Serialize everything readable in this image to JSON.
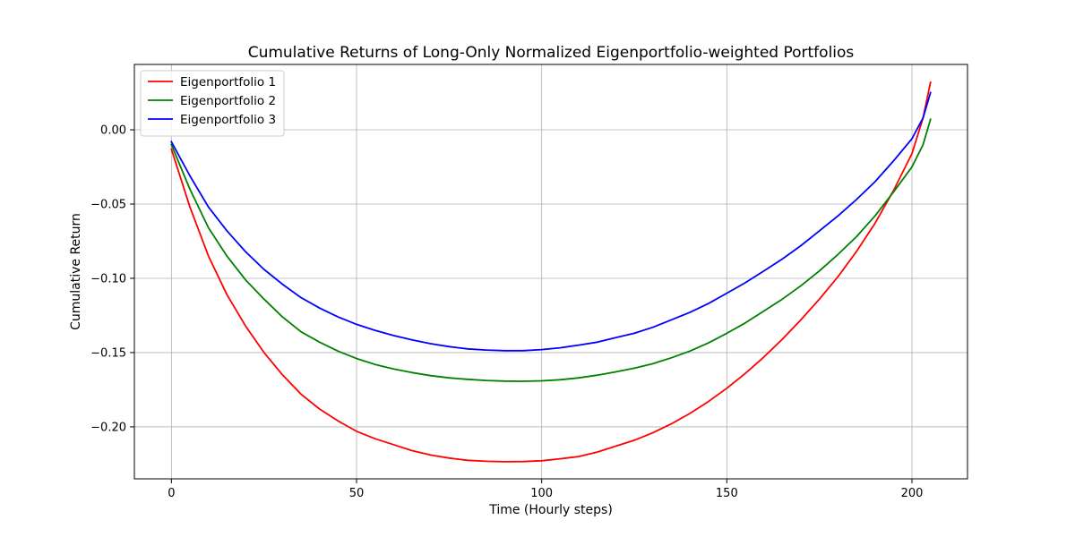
{
  "chart_data": {
    "type": "line",
    "title": "Cumulative Returns of Long-Only Normalized Eigenportfolio-weighted Portfolios",
    "xlabel": "Time (Hourly steps)",
    "ylabel": "Cumulative Return",
    "xlim": [
      -10,
      215
    ],
    "ylim": [
      -0.235,
      0.044
    ],
    "xticks": [
      0,
      50,
      100,
      150,
      200
    ],
    "xtick_labels": [
      "0",
      "50",
      "100",
      "150",
      "200"
    ],
    "yticks": [
      0.0,
      -0.05,
      -0.1,
      -0.15,
      -0.2
    ],
    "ytick_labels": [
      "0.00",
      "−0.05",
      "−0.10",
      "−0.15",
      "−0.20"
    ],
    "grid": true,
    "legend_position": "top-left",
    "x": [
      0,
      5,
      10,
      15,
      20,
      25,
      30,
      35,
      40,
      45,
      50,
      55,
      60,
      65,
      70,
      75,
      80,
      85,
      90,
      95,
      100,
      105,
      110,
      115,
      120,
      125,
      130,
      135,
      140,
      145,
      150,
      155,
      160,
      165,
      170,
      175,
      180,
      185,
      190,
      195,
      200,
      203,
      205
    ],
    "series": [
      {
        "name": "Eigenportfolio 1",
        "color": "#ff0000",
        "values": [
          -0.013,
          -0.052,
          -0.085,
          -0.111,
          -0.132,
          -0.15,
          -0.165,
          -0.178,
          -0.188,
          -0.196,
          -0.203,
          -0.208,
          -0.212,
          -0.216,
          -0.219,
          -0.221,
          -0.2225,
          -0.2232,
          -0.2235,
          -0.2234,
          -0.2228,
          -0.2215,
          -0.22,
          -0.217,
          -0.213,
          -0.209,
          -0.204,
          -0.198,
          -0.191,
          -0.183,
          -0.174,
          -0.164,
          -0.153,
          -0.141,
          -0.128,
          -0.114,
          -0.099,
          -0.082,
          -0.063,
          -0.041,
          -0.016,
          0.008,
          0.032
        ]
      },
      {
        "name": "Eigenportfolio 2",
        "color": "#008000",
        "values": [
          -0.01,
          -0.04,
          -0.066,
          -0.085,
          -0.101,
          -0.114,
          -0.126,
          -0.136,
          -0.143,
          -0.149,
          -0.154,
          -0.158,
          -0.161,
          -0.1635,
          -0.1655,
          -0.167,
          -0.168,
          -0.1688,
          -0.1692,
          -0.1693,
          -0.169,
          -0.1683,
          -0.167,
          -0.1652,
          -0.163,
          -0.1605,
          -0.1575,
          -0.1535,
          -0.149,
          -0.1435,
          -0.137,
          -0.13,
          -0.122,
          -0.114,
          -0.105,
          -0.095,
          -0.084,
          -0.072,
          -0.058,
          -0.042,
          -0.025,
          -0.01,
          0.007
        ]
      },
      {
        "name": "Eigenportfolio 3",
        "color": "#0000ff",
        "values": [
          -0.008,
          -0.031,
          -0.052,
          -0.068,
          -0.082,
          -0.094,
          -0.104,
          -0.113,
          -0.12,
          -0.126,
          -0.131,
          -0.135,
          -0.1385,
          -0.1415,
          -0.144,
          -0.146,
          -0.1475,
          -0.1483,
          -0.1487,
          -0.1487,
          -0.148,
          -0.1468,
          -0.145,
          -0.143,
          -0.14,
          -0.137,
          -0.133,
          -0.128,
          -0.123,
          -0.117,
          -0.11,
          -0.103,
          -0.095,
          -0.087,
          -0.078,
          -0.068,
          -0.058,
          -0.047,
          -0.035,
          -0.021,
          -0.006,
          0.008,
          0.025
        ]
      }
    ]
  }
}
